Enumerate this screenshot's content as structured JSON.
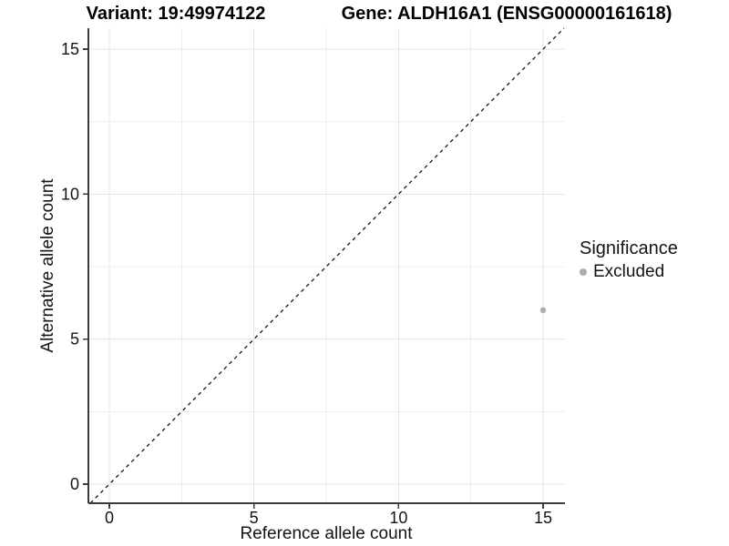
{
  "header": {
    "variant_title": "Variant: 19:49974122",
    "gene_title": "Gene: ALDH16A1 (ENSG00000161618)"
  },
  "legend": {
    "title": "Significance",
    "items": [
      {
        "label": "Excluded",
        "color": "#adadad"
      }
    ]
  },
  "chart_data": {
    "type": "scatter",
    "title": "Variant: 19:49974122 | Gene: ALDH16A1 (ENSG00000161618)",
    "xlabel": "Reference allele count",
    "ylabel": "Alternative allele count",
    "xlim": [
      0,
      15
    ],
    "ylim": [
      0,
      15
    ],
    "x_ticks": [
      0,
      5,
      10,
      15
    ],
    "y_ticks": [
      0,
      5,
      10,
      15
    ],
    "minor_ticks": [
      2.5,
      7.5,
      12.5
    ],
    "grid": true,
    "legend_position": "right",
    "series": [
      {
        "name": "Excluded",
        "color": "#adadad",
        "points": [
          {
            "x": 15,
            "y": 6
          }
        ]
      }
    ],
    "reference_line": {
      "type": "identity",
      "slope": 1,
      "intercept": 0,
      "style": "dashed",
      "color": "#141414"
    }
  },
  "colors": {
    "background": "#ffffff",
    "grid_major": "#e4e4e4",
    "grid_minor": "#efefef",
    "axis_line": "#3c3c3c",
    "tick_text": "#141414",
    "point": "#adadad"
  }
}
